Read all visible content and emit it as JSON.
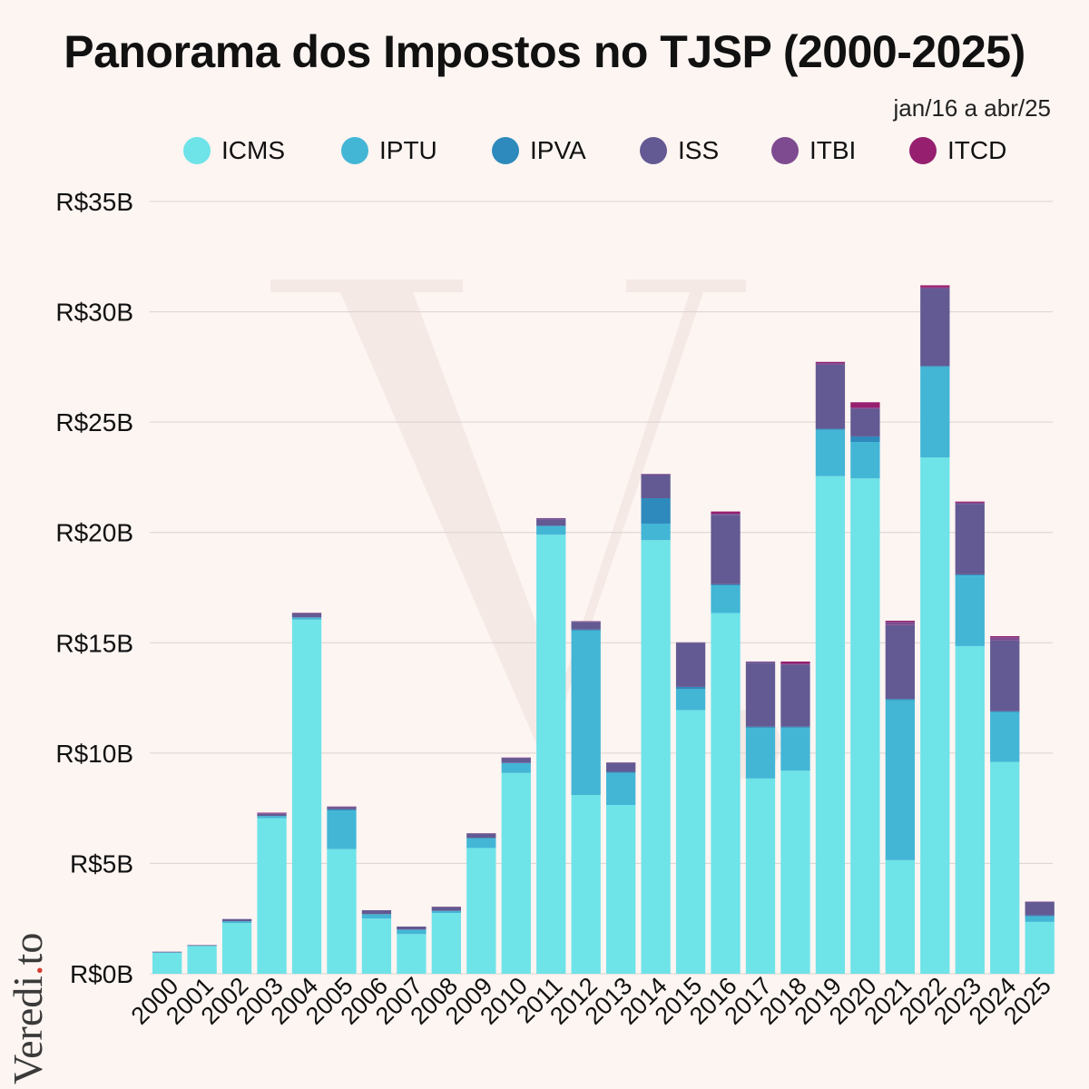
{
  "colors": {
    "background": "#fdf5f2",
    "grid": "#d9d2cf",
    "ICMS": "#6ee3e8",
    "IPTU": "#43b6d6",
    "IPVA": "#2e8abc",
    "ISS": "#635a93",
    "ITBI": "#7e4b90",
    "ITCD": "#961f6f"
  },
  "watermark_text": "Veredi.to",
  "chart_data": {
    "type": "bar",
    "stacked": true,
    "title": "Panorama dos Impostos no TJSP (2000-2025)",
    "subtitle": "jan/16 a abr/25",
    "ylim": [
      0,
      35
    ],
    "yticks": [
      0,
      5,
      10,
      15,
      20,
      25,
      30,
      35
    ],
    "ytick_labels": [
      "R$0B",
      "R$5B",
      "R$10B",
      "R$15B",
      "R$20B",
      "R$25B",
      "R$30B",
      "R$35B"
    ],
    "grid": true,
    "legend_position": "top",
    "categories": [
      "2000",
      "2001",
      "2002",
      "2003",
      "2004",
      "2005",
      "2006",
      "2007",
      "2008",
      "2009",
      "2010",
      "2011",
      "2012",
      "2013",
      "2014",
      "2015",
      "2016",
      "2017",
      "2018",
      "2019",
      "2020",
      "2021",
      "2022",
      "2023",
      "2024",
      "2025"
    ],
    "series": [
      {
        "name": "ICMS",
        "values": [
          0.95,
          1.25,
          2.3,
          7.05,
          16.05,
          5.65,
          2.5,
          1.8,
          2.75,
          5.7,
          9.1,
          19.9,
          8.1,
          7.65,
          19.65,
          11.95,
          16.35,
          8.85,
          9.2,
          22.55,
          22.45,
          5.15,
          23.4,
          14.85,
          9.6,
          2.35
        ]
      },
      {
        "name": "IPTU",
        "values": [
          0.02,
          0.02,
          0.08,
          0.1,
          0.1,
          1.75,
          0.2,
          0.2,
          0.1,
          0.45,
          0.45,
          0.4,
          7.45,
          1.45,
          0.75,
          0.95,
          1.25,
          2.3,
          1.95,
          2.1,
          1.65,
          7.25,
          4.1,
          3.2,
          2.25,
          0.25
        ]
      },
      {
        "name": "IPVA",
        "values": [
          0,
          0,
          0,
          0,
          0,
          0.05,
          0,
          0,
          0,
          0,
          0,
          0,
          0.05,
          0.05,
          1.15,
          0.1,
          0.05,
          0.05,
          0.05,
          0.05,
          0.25,
          0.05,
          0.05,
          0.05,
          0.05,
          0.05
        ]
      },
      {
        "name": "ISS",
        "values": [
          0.03,
          0.03,
          0.1,
          0.1,
          0.18,
          0.1,
          0.18,
          0.14,
          0.17,
          0.2,
          0.22,
          0.3,
          0.35,
          0.4,
          1.05,
          2.0,
          3.15,
          2.9,
          2.8,
          2.9,
          1.25,
          3.35,
          3.5,
          3.2,
          3.2,
          0.6
        ]
      },
      {
        "name": "ITBI",
        "values": [
          0,
          0,
          0,
          0.03,
          0.02,
          0.02,
          0,
          0,
          0.02,
          0.02,
          0.03,
          0.05,
          0.03,
          0.03,
          0.05,
          0.02,
          0.05,
          0.05,
          0.05,
          0.08,
          0.05,
          0.15,
          0.05,
          0.05,
          0.15,
          0.02
        ]
      },
      {
        "name": "ITCD",
        "values": [
          0,
          0,
          0,
          0.02,
          0.01,
          0.01,
          0,
          0,
          0,
          0,
          0,
          0,
          0,
          0,
          0,
          0,
          0.1,
          0,
          0.1,
          0.05,
          0.25,
          0.05,
          0.1,
          0.05,
          0.05,
          0
        ]
      }
    ]
  }
}
